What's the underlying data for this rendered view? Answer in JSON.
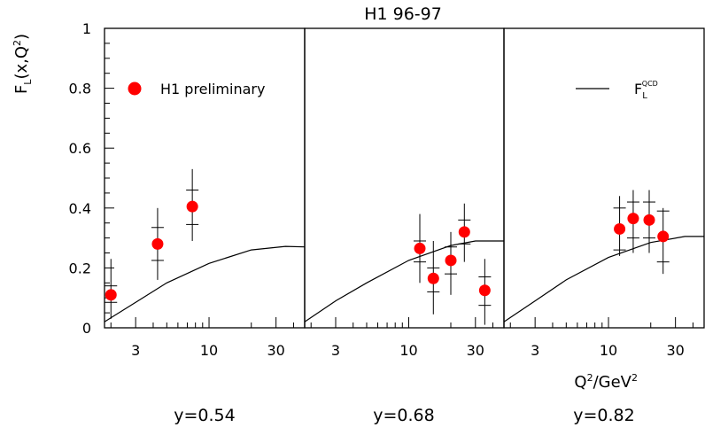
{
  "title": "H1 96-97",
  "ylabel": {
    "main": "F",
    "sub": "L",
    "rest": "(x,Q",
    "sup": "2",
    "close": ")"
  },
  "xlabel": {
    "q": "Q",
    "sup1": "2",
    "mid": "/GeV",
    "sup2": "2"
  },
  "legend_data": "H1 preliminary",
  "legend_model": {
    "main": "F",
    "sub": "L",
    "sup": "QCD"
  },
  "colors": {
    "data": "#ff0000",
    "line": "#000000",
    "frame": "#000000"
  },
  "chart_data": {
    "type": "scatter",
    "x_scale": "log",
    "xlim": [
      1.8,
      48
    ],
    "ylim": [
      0,
      1
    ],
    "y_ticks": [
      0,
      0.2,
      0.4,
      0.6,
      0.8,
      1
    ],
    "y_tick_labels": [
      "0",
      "0.2",
      "0.4",
      "0.6",
      "0.8",
      "1"
    ],
    "x_tick_labels": [
      "3",
      "10",
      "30"
    ],
    "x_major_ticks": [
      3,
      10,
      30
    ],
    "x_minor_ticks": [
      2,
      4,
      5,
      6,
      7,
      8,
      9,
      20,
      40
    ],
    "panels": [
      {
        "label": "y=0.54",
        "points": [
          {
            "x": 2.0,
            "y": 0.11,
            "stat": [
              0.085,
              0.14
            ],
            "tot": [
              0.03,
              0.23
            ]
          },
          {
            "x": 4.3,
            "y": 0.28,
            "stat": [
              0.225,
              0.335
            ],
            "tot": [
              0.16,
              0.4
            ]
          },
          {
            "x": 7.6,
            "y": 0.405,
            "stat": [
              0.345,
              0.46
            ],
            "tot": [
              0.29,
              0.53
            ]
          }
        ],
        "qcd": [
          [
            1.8,
            0.02
          ],
          [
            3,
            0.085
          ],
          [
            5,
            0.15
          ],
          [
            10,
            0.215
          ],
          [
            20,
            0.26
          ],
          [
            35,
            0.272
          ],
          [
            48,
            0.27
          ]
        ]
      },
      {
        "label": "y=0.68",
        "points": [
          {
            "x": 12.0,
            "y": 0.265,
            "stat": [
              0.22,
              0.29
            ],
            "tot": [
              0.15,
              0.38
            ]
          },
          {
            "x": 15.0,
            "y": 0.165,
            "stat": [
              0.12,
              0.2
            ],
            "tot": [
              0.045,
              0.29
            ]
          },
          {
            "x": 20.0,
            "y": 0.225,
            "stat": [
              0.18,
              0.27
            ],
            "tot": [
              0.11,
              0.32
            ]
          },
          {
            "x": 25.0,
            "y": 0.32,
            "stat": [
              0.28,
              0.36
            ],
            "tot": [
              0.22,
              0.415
            ]
          },
          {
            "x": 35.0,
            "y": 0.125,
            "stat": [
              0.075,
              0.17
            ],
            "tot": [
              0.01,
              0.23
            ]
          }
        ],
        "qcd": [
          [
            1.8,
            0.02
          ],
          [
            3,
            0.09
          ],
          [
            5,
            0.15
          ],
          [
            10,
            0.225
          ],
          [
            20,
            0.275
          ],
          [
            30,
            0.29
          ],
          [
            48,
            0.29
          ]
        ]
      },
      {
        "label": "y=0.82",
        "points": [
          {
            "x": 12.0,
            "y": 0.33,
            "stat": [
              0.26,
              0.4
            ],
            "tot": [
              0.24,
              0.44
            ]
          },
          {
            "x": 15.0,
            "y": 0.365,
            "stat": [
              0.3,
              0.42
            ],
            "tot": [
              0.25,
              0.46
            ]
          },
          {
            "x": 19.5,
            "y": 0.36,
            "stat": [
              0.3,
              0.42
            ],
            "tot": [
              0.25,
              0.46
            ]
          },
          {
            "x": 24.5,
            "y": 0.305,
            "stat": [
              0.22,
              0.39
            ],
            "tot": [
              0.18,
              0.4
            ]
          }
        ],
        "qcd": [
          [
            1.8,
            0.02
          ],
          [
            3,
            0.09
          ],
          [
            5,
            0.16
          ],
          [
            10,
            0.235
          ],
          [
            20,
            0.285
          ],
          [
            35,
            0.305
          ],
          [
            48,
            0.305
          ]
        ]
      }
    ]
  }
}
